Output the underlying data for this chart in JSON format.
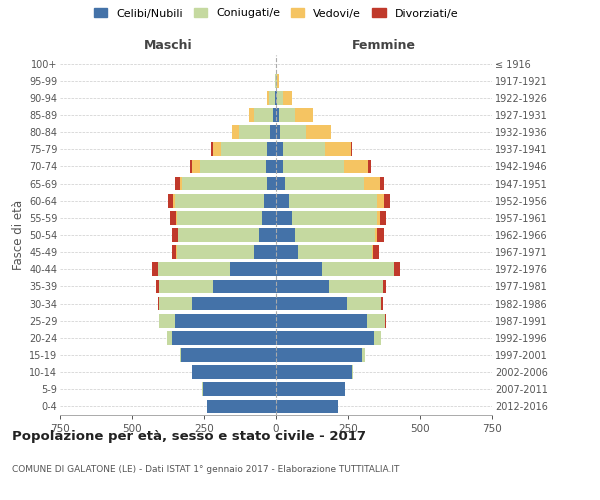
{
  "age_groups": [
    "0-4",
    "5-9",
    "10-14",
    "15-19",
    "20-24",
    "25-29",
    "30-34",
    "35-39",
    "40-44",
    "45-49",
    "50-54",
    "55-59",
    "60-64",
    "65-69",
    "70-74",
    "75-79",
    "80-84",
    "85-89",
    "90-94",
    "95-99",
    "100+"
  ],
  "birth_years": [
    "2012-2016",
    "2007-2011",
    "2002-2006",
    "1997-2001",
    "1992-1996",
    "1987-1991",
    "1982-1986",
    "1977-1981",
    "1972-1976",
    "1967-1971",
    "1962-1966",
    "1957-1961",
    "1952-1956",
    "1947-1951",
    "1942-1946",
    "1937-1941",
    "1932-1936",
    "1927-1931",
    "1922-1926",
    "1917-1921",
    "≤ 1916"
  ],
  "male": {
    "celibi": [
      240,
      255,
      290,
      330,
      360,
      350,
      290,
      220,
      160,
      75,
      60,
      50,
      42,
      30,
      35,
      30,
      22,
      10,
      4,
      1,
      0
    ],
    "coniugati": [
      0,
      1,
      2,
      5,
      20,
      55,
      115,
      185,
      250,
      270,
      280,
      295,
      310,
      295,
      230,
      160,
      105,
      65,
      20,
      2,
      0
    ],
    "vedovi": [
      0,
      0,
      0,
      0,
      0,
      0,
      0,
      0,
      1,
      1,
      2,
      3,
      5,
      10,
      25,
      30,
      25,
      20,
      8,
      2,
      0
    ],
    "divorziati": [
      0,
      0,
      0,
      0,
      0,
      2,
      5,
      12,
      20,
      15,
      18,
      20,
      18,
      15,
      10,
      5,
      0,
      0,
      0,
      0,
      0
    ]
  },
  "female": {
    "nubili": [
      215,
      240,
      265,
      300,
      340,
      315,
      245,
      185,
      160,
      75,
      65,
      55,
      45,
      30,
      25,
      25,
      15,
      10,
      5,
      1,
      0
    ],
    "coniugate": [
      0,
      1,
      3,
      10,
      25,
      65,
      120,
      185,
      250,
      260,
      280,
      295,
      305,
      275,
      210,
      145,
      90,
      55,
      20,
      3,
      0
    ],
    "vedove": [
      0,
      0,
      0,
      0,
      0,
      0,
      0,
      1,
      1,
      3,
      5,
      10,
      25,
      55,
      85,
      90,
      85,
      65,
      30,
      5,
      0
    ],
    "divorziate": [
      0,
      0,
      0,
      0,
      0,
      2,
      6,
      12,
      20,
      18,
      25,
      22,
      20,
      15,
      10,
      5,
      0,
      0,
      0,
      0,
      0
    ]
  },
  "colors": {
    "celibi": "#4472a8",
    "coniugati": "#c5d9a0",
    "vedovi": "#f5c462",
    "divorziati": "#c0392b"
  },
  "title": "Popolazione per età, sesso e stato civile - 2017",
  "subtitle": "COMUNE DI GALATONE (LE) - Dati ISTAT 1° gennaio 2017 - Elaborazione TUTTITALIA.IT",
  "xlabel_left": "Maschi",
  "xlabel_right": "Femmine",
  "ylabel_left": "Fasce di età",
  "xlim": 750,
  "legend_labels": [
    "Celibi/Nubili",
    "Coniugati/e",
    "Vedovi/e",
    "Divorziati/e"
  ],
  "bg_color": "#ffffff",
  "grid_color": "#cccccc"
}
